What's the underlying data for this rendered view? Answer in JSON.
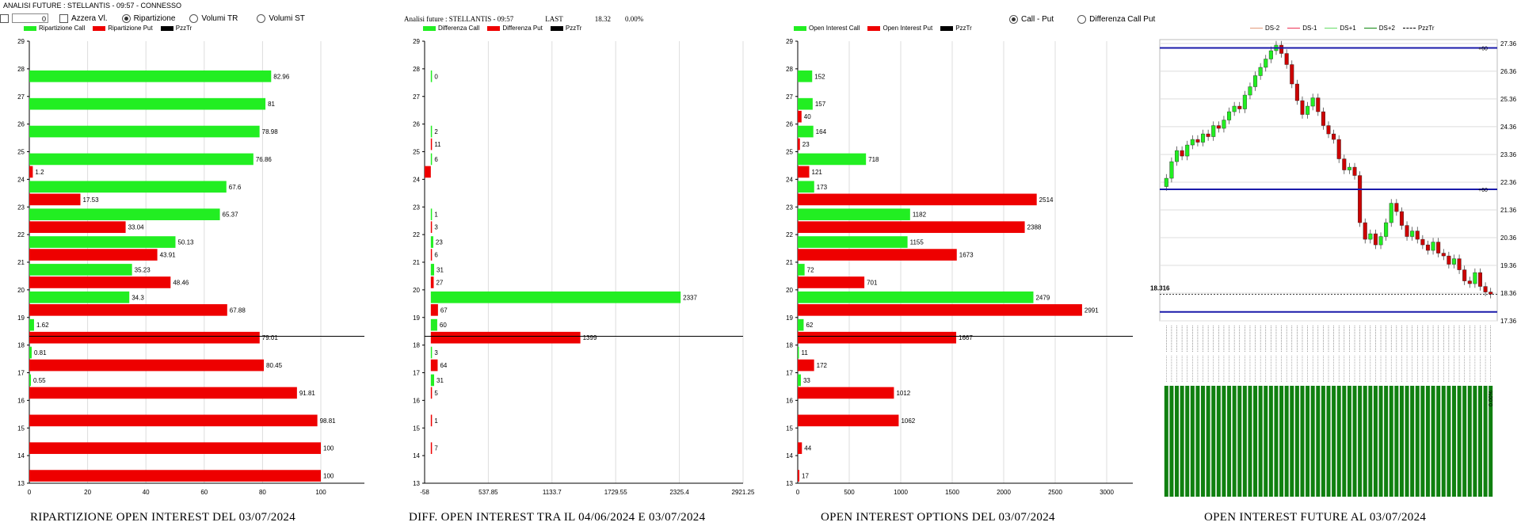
{
  "header": {
    "title": "ANALISI FUTURE : STELLANTIS - 09:57 - CONNESSO"
  },
  "controls": {
    "input_value": "0",
    "azzera_label": "Azzera Vl.",
    "radios": [
      {
        "label": "Ripartizione",
        "selected": true
      },
      {
        "label": "Volumi TR",
        "selected": false
      },
      {
        "label": "Volumi ST",
        "selected": false
      }
    ]
  },
  "panel2_header": {
    "title": "Analisi future : STELLANTIS - 09:57",
    "last_label": "LAST",
    "last_value": "18.32",
    "last_change": "0.00%"
  },
  "panel3_radios": [
    {
      "label": "Call - Put",
      "selected": true
    },
    {
      "label": "Differenza Call Put",
      "selected": false
    }
  ],
  "legends": {
    "p1": [
      {
        "label": "Ripartizione Call",
        "color": "#22ee22"
      },
      {
        "label": "Ripartizione Put",
        "color": "#ee0000"
      },
      {
        "label": "PzzTr",
        "color": "#000000"
      }
    ],
    "p2": [
      {
        "label": "Differenza Call",
        "color": "#22ee22"
      },
      {
        "label": "Differenza Put",
        "color": "#ee0000"
      },
      {
        "label": "PzzTr",
        "color": "#000000"
      }
    ],
    "p3": [
      {
        "label": "Open Interest Call",
        "color": "#22ee22"
      },
      {
        "label": "Open Interest Put",
        "color": "#ee0000"
      },
      {
        "label": "PzzTr",
        "color": "#000000"
      }
    ],
    "p4": [
      {
        "label": "DS-2",
        "color": "#e39a7a"
      },
      {
        "label": "DS-1",
        "color": "#ee3355"
      },
      {
        "label": "DS+1",
        "color": "#66dd66"
      },
      {
        "label": "DS+2",
        "color": "#118811"
      },
      {
        "label": "PzzTr",
        "color": "#000000"
      }
    ]
  },
  "captions": {
    "p1": "RIPARTIZIONE OPEN INTEREST DEL 03/07/2024",
    "p2": "DIFF. OPEN INTEREST TRA IL 04/06/2024 E 03/07/2024",
    "p3": "OPEN INTEREST OPTIONS DEL 03/07/2024",
    "p4": "OPEN INTEREST FUTURE AL 03/07/2024"
  },
  "colors": {
    "call": "#22ee22",
    "put": "#ee0000",
    "blue_line": "#1a1aaa",
    "volume": "#108010"
  },
  "chart_data": [
    {
      "type": "bar",
      "title": "RIPARTIZIONE OPEN INTEREST DEL 03/07/2024",
      "orientation": "horizontal",
      "strikes": [
        29,
        28,
        27,
        26,
        25,
        24,
        23,
        22,
        21,
        20,
        19,
        18,
        17,
        16,
        15,
        14,
        13
      ],
      "xlim": [
        0,
        100
      ],
      "xticks": [
        "0",
        "20",
        "40",
        "60",
        "80",
        "100"
      ],
      "ref_strike": 18.32,
      "series": [
        {
          "name": "Ripartizione Call",
          "values": [
            null,
            82.96,
            81,
            78.98,
            76.86,
            67.6,
            65.37,
            50.13,
            35.23,
            34.3,
            1.62,
            0.81,
            0.55,
            null,
            null,
            null,
            null
          ],
          "labels": [
            "",
            "82.96",
            "81",
            "78.98",
            "76.86",
            "67.6",
            "65.37",
            "50.13",
            "35.23",
            "34.3",
            "1.62",
            "0.81",
            "0.55",
            "",
            "",
            "",
            ""
          ]
        },
        {
          "name": "Ripartizione Put",
          "values": [
            null,
            null,
            null,
            null,
            1.2,
            17.53,
            33.04,
            43.91,
            48.46,
            67.88,
            79.01,
            80.45,
            91.81,
            98.81,
            100,
            100,
            null
          ],
          "labels": [
            "",
            "",
            "",
            "",
            "1.2",
            "17.53",
            "33.04",
            "43.91",
            "48.46",
            "67.88",
            "79.01",
            "80.45",
            "91.81",
            "98.81",
            "100",
            "100",
            ""
          ]
        }
      ]
    },
    {
      "type": "bar",
      "title": "DIFF. OPEN INTEREST TRA IL 04/06/2024 E 03/07/2024",
      "orientation": "horizontal",
      "strikes": [
        29,
        28,
        27,
        26,
        25,
        24,
        23,
        22,
        21,
        20,
        19,
        18,
        17,
        16,
        15,
        14,
        13
      ],
      "xlim": [
        -58,
        2921.25
      ],
      "xticks": [
        "-58",
        "537.85",
        "1133.7",
        "1729.55",
        "2325.4",
        "2921.25"
      ],
      "ref_strike": 18.32,
      "series": [
        {
          "name": "Differenza Call",
          "values": [
            null,
            0,
            null,
            2,
            6,
            null,
            1,
            23,
            31,
            2337,
            60,
            3,
            31,
            null,
            null,
            null,
            null
          ],
          "labels": [
            "",
            "0",
            "",
            "2",
            "6",
            "",
            "1",
            "23",
            "31",
            "2337",
            "60",
            "3",
            "31",
            "",
            "",
            "",
            ""
          ]
        },
        {
          "name": "Differenza Put",
          "values": [
            null,
            null,
            null,
            11,
            -58,
            null,
            3,
            6,
            27,
            67,
            1399,
            64,
            5,
            1,
            7,
            null,
            null
          ],
          "labels": [
            "",
            "",
            "",
            "11",
            "",
            "",
            "3",
            "6",
            "27",
            "67",
            "1399",
            "64",
            "5",
            "1",
            "7",
            "",
            ""
          ]
        }
      ]
    },
    {
      "type": "bar",
      "title": "OPEN INTEREST OPTIONS DEL 03/07/2024",
      "orientation": "horizontal",
      "strikes": [
        29,
        28,
        27,
        26,
        25,
        24,
        23,
        22,
        21,
        20,
        19,
        18,
        17,
        16,
        15,
        14,
        13
      ],
      "xlim": [
        0,
        3250
      ],
      "xticks": [
        "0",
        "500",
        "1000",
        "1500",
        "2000",
        "2500",
        "3000"
      ],
      "ref_strike": 18.32,
      "series": [
        {
          "name": "Open Interest Call",
          "values": [
            null,
            152,
            157,
            164,
            718,
            173,
            1182,
            1155,
            72,
            2479,
            62,
            11,
            33,
            null,
            null,
            null,
            null
          ],
          "labels": [
            "",
            "152",
            "157",
            "164",
            "718",
            "173",
            "1182",
            "1155",
            "72",
            "2479",
            "62",
            "11",
            "33",
            "",
            "",
            "",
            ""
          ]
        },
        {
          "name": "Open Interest Put",
          "values": [
            null,
            null,
            40,
            23,
            121,
            2514,
            2388,
            1673,
            701,
            2991,
            1667,
            172,
            1012,
            1062,
            44,
            17,
            null
          ],
          "labels": [
            "",
            "",
            "40",
            "23",
            "121",
            "2514",
            "2388",
            "1673",
            "701",
            "2991",
            "1667",
            "172",
            "1012",
            "1062",
            "44",
            "17",
            ""
          ]
        }
      ]
    },
    {
      "type": "line",
      "subtype": "candlestick",
      "title": "OPEN INTEREST FUTURE AL 03/07/2024",
      "ylim": [
        17.36,
        27.5
      ],
      "yticks": [
        "27.36",
        "26.36",
        "25.36",
        "24.36",
        "23.36",
        "22.36",
        "21.36",
        "20.36",
        "19.36",
        "18.36",
        "17.36"
      ],
      "price_label": "18.316",
      "levels": [
        27.2,
        22.1,
        17.68
      ],
      "level_marks": [
        "+60",
        "+60",
        ""
      ],
      "close": [
        22.5,
        23.1,
        23.5,
        23.3,
        23.7,
        23.9,
        23.8,
        24.1,
        24.0,
        24.4,
        24.3,
        24.6,
        24.9,
        25.1,
        25.0,
        25.5,
        25.8,
        26.2,
        26.5,
        26.8,
        27.1,
        27.3,
        27.0,
        26.6,
        25.9,
        25.3,
        24.8,
        25.1,
        25.4,
        24.9,
        24.4,
        24.1,
        23.9,
        23.2,
        22.8,
        22.9,
        22.6,
        20.9,
        20.3,
        20.5,
        20.1,
        20.4,
        20.9,
        21.6,
        21.3,
        20.8,
        20.4,
        20.6,
        20.3,
        20.1,
        19.9,
        20.2,
        19.8,
        19.7,
        19.4,
        19.6,
        19.2,
        18.8,
        18.7,
        19.1,
        18.6,
        18.4,
        18.32
      ],
      "volume_label": "0.00%"
    }
  ]
}
